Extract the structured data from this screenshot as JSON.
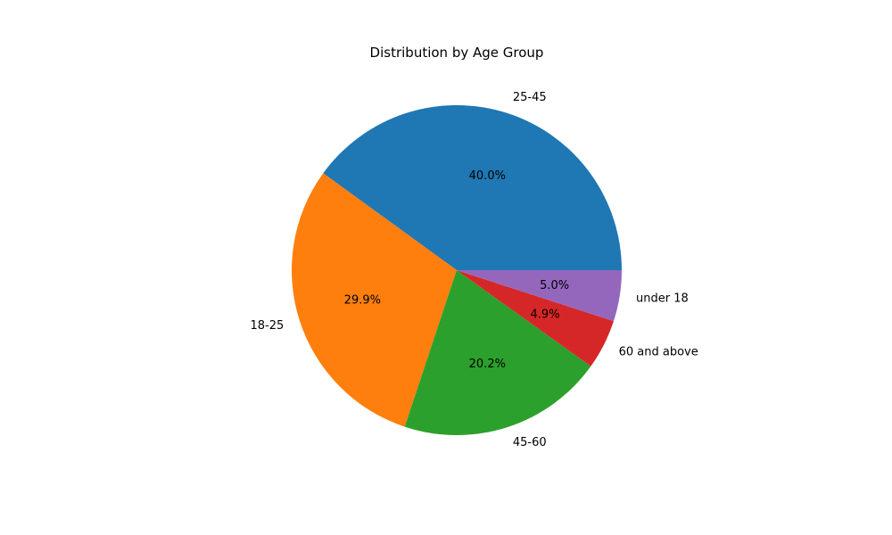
{
  "chart_data": {
    "type": "pie",
    "title": "Distribution by Age Group",
    "start_angle_deg": 0,
    "direction": "counterclockwise",
    "slices": [
      {
        "label": "25-45",
        "value": 40.0,
        "pct_label": "40.0%",
        "color": "#1f77b4"
      },
      {
        "label": "18-25",
        "value": 29.9,
        "pct_label": "29.9%",
        "color": "#ff7f0e"
      },
      {
        "label": "45-60",
        "value": 20.2,
        "pct_label": "20.2%",
        "color": "#2ca02c"
      },
      {
        "label": "60 and above",
        "value": 4.9,
        "pct_label": "4.9%",
        "color": "#d62728"
      },
      {
        "label": "under 18",
        "value": 5.0,
        "pct_label": "5.0%",
        "color": "#9467bd"
      }
    ]
  }
}
